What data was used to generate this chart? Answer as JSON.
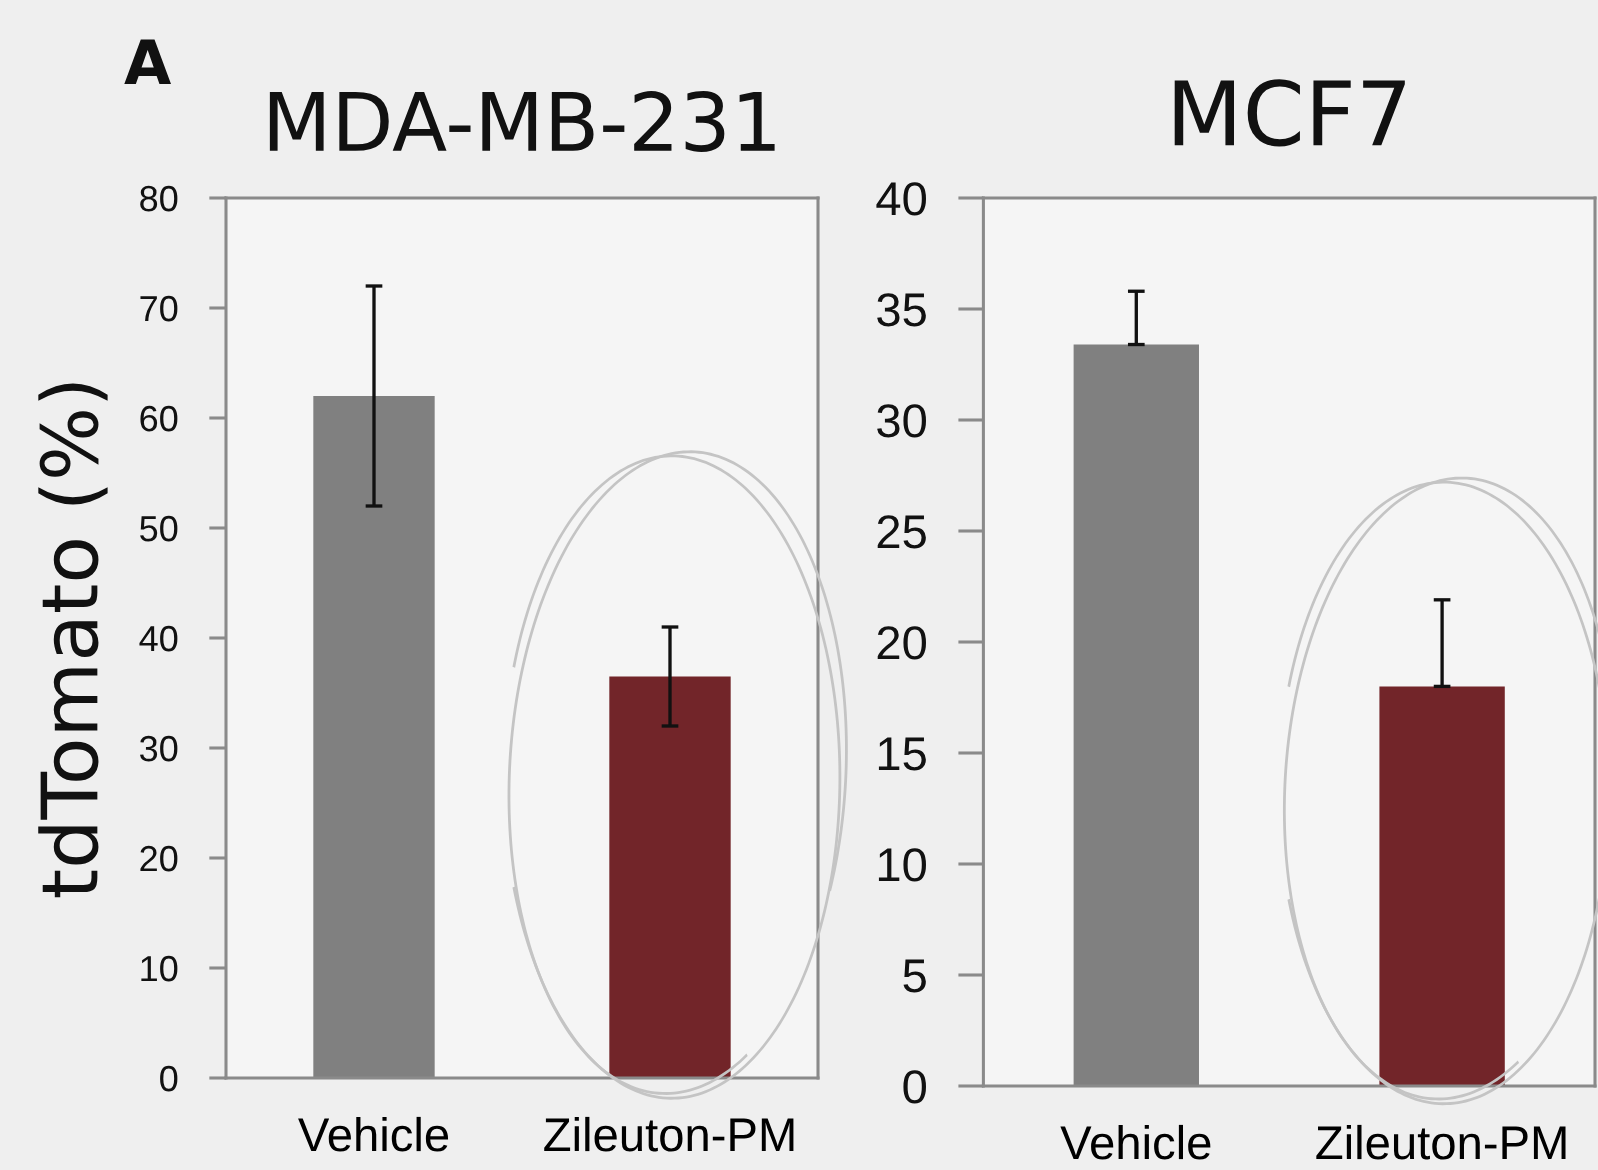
{
  "chart_data": [
    {
      "type": "bar",
      "title": "MDA-MB-231",
      "ylabel": "tdTomato (%)",
      "annotations": [
        "A"
      ],
      "categories": [
        "Vehicle",
        "Zileuton-PM"
      ],
      "values": [
        62,
        36.5
      ],
      "colors": [
        "#808080",
        "#722529"
      ],
      "errors": [
        10,
        4.5
      ],
      "ylim": [
        0,
        80
      ],
      "yticks": [
        0,
        10,
        20,
        30,
        40,
        50,
        60,
        70,
        80
      ]
    },
    {
      "type": "bar",
      "title": "MCF7",
      "categories": [
        "Vehicle",
        "Zileuton-PM"
      ],
      "values": [
        33.4,
        18
      ],
      "colors": [
        "#808080",
        "#722529"
      ],
      "errors": [
        [
          33.4,
          35.8
        ],
        [
          18,
          21.9
        ]
      ],
      "ylim": [
        0,
        40
      ],
      "yticks": [
        0,
        5,
        10,
        15,
        20,
        25,
        30,
        35,
        40
      ]
    }
  ]
}
